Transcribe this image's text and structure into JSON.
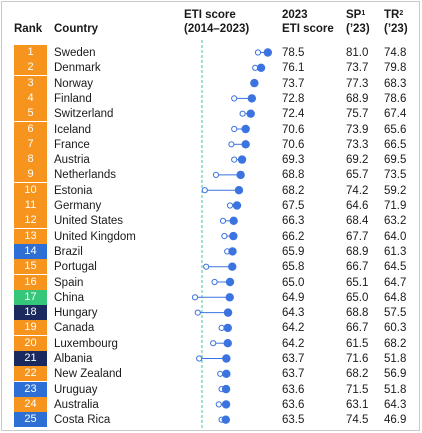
{
  "headers": {
    "rank": "Rank",
    "country": "Country",
    "eti_range_line1": "ETI score",
    "eti_range_line2": "(2014–2023)",
    "eti_2023_line1": "2023",
    "eti_2023_line2": "ETI score",
    "sp_label": "SP",
    "sp_sup": "1",
    "sp_year": "(’23)",
    "tr_label": "TR",
    "tr_sup": "2",
    "tr_year": "(’23)"
  },
  "colors": {
    "orange": "#f7941d",
    "blue": "#2e6fd6",
    "green": "#35c67a",
    "navy": "#1a2a5e",
    "dot": "#3b73e0",
    "reference_line": "#47c29b"
  },
  "chart_data": {
    "type": "table",
    "description_columns": [
      "Rank",
      "Country",
      "ETI score (2014–2023)",
      "2023 ETI score",
      "SP (’23)",
      "TR (’23)"
    ],
    "rows": [
      {
        "rank": "1",
        "country": "Sweden",
        "eti_2014": 75.0,
        "eti_2023": "78.5",
        "sp": "81.0",
        "tr": "74.8",
        "color": "#f7941d"
      },
      {
        "rank": "2",
        "country": "Denmark",
        "eti_2014": 74.0,
        "eti_2023": "76.1",
        "sp": "73.7",
        "tr": "79.8",
        "color": "#f7941d"
      },
      {
        "rank": "3",
        "country": "Norway",
        "eti_2014": 73.5,
        "eti_2023": "73.7",
        "sp": "77.3",
        "tr": "68.3",
        "color": "#f7941d"
      },
      {
        "rank": "4",
        "country": "Finland",
        "eti_2014": 66.5,
        "eti_2023": "72.8",
        "sp": "68.9",
        "tr": "78.6",
        "color": "#f7941d"
      },
      {
        "rank": "5",
        "country": "Switzerland",
        "eti_2014": 69.5,
        "eti_2023": "72.4",
        "sp": "75.7",
        "tr": "67.4",
        "color": "#f7941d"
      },
      {
        "rank": "6",
        "country": "Iceland",
        "eti_2014": 66.5,
        "eti_2023": "70.6",
        "sp": "73.9",
        "tr": "65.6",
        "color": "#f7941d"
      },
      {
        "rank": "7",
        "country": "France",
        "eti_2014": 65.5,
        "eti_2023": "70.6",
        "sp": "73.3",
        "tr": "66.5",
        "color": "#f7941d"
      },
      {
        "rank": "8",
        "country": "Austria",
        "eti_2014": 66.5,
        "eti_2023": "69.3",
        "sp": "69.2",
        "tr": "69.5",
        "color": "#f7941d"
      },
      {
        "rank": "9",
        "country": "Netherlands",
        "eti_2014": 60.0,
        "eti_2023": "68.8",
        "sp": "65.7",
        "tr": "73.5",
        "color": "#f7941d"
      },
      {
        "rank": "10",
        "country": "Estonia",
        "eti_2014": 56.0,
        "eti_2023": "68.2",
        "sp": "74.2",
        "tr": "59.2",
        "color": "#f7941d"
      },
      {
        "rank": "11",
        "country": "Germany",
        "eti_2014": 65.0,
        "eti_2023": "67.5",
        "sp": "64.6",
        "tr": "71.9",
        "color": "#f7941d"
      },
      {
        "rank": "12",
        "country": "United States",
        "eti_2014": 62.5,
        "eti_2023": "66.3",
        "sp": "68.4",
        "tr": "63.2",
        "color": "#f7941d"
      },
      {
        "rank": "13",
        "country": "United Kingdom",
        "eti_2014": 63.0,
        "eti_2023": "66.2",
        "sp": "67.7",
        "tr": "64.0",
        "color": "#f7941d"
      },
      {
        "rank": "14",
        "country": "Brazil",
        "eti_2014": 64.0,
        "eti_2023": "65.9",
        "sp": "68.9",
        "tr": "61.3",
        "color": "#2e6fd6"
      },
      {
        "rank": "15",
        "country": "Portugal",
        "eti_2014": 56.5,
        "eti_2023": "65.8",
        "sp": "66.7",
        "tr": "64.5",
        "color": "#f7941d"
      },
      {
        "rank": "16",
        "country": "Spain",
        "eti_2014": 59.5,
        "eti_2023": "65.0",
        "sp": "65.1",
        "tr": "64.7",
        "color": "#f7941d"
      },
      {
        "rank": "17",
        "country": "China",
        "eti_2014": 52.5,
        "eti_2023": "64.9",
        "sp": "65.0",
        "tr": "64.8",
        "color": "#35c67a"
      },
      {
        "rank": "18",
        "country": "Hungary",
        "eti_2014": 53.5,
        "eti_2023": "64.3",
        "sp": "68.8",
        "tr": "57.5",
        "color": "#1a2a5e"
      },
      {
        "rank": "19",
        "country": "Canada",
        "eti_2014": 62.0,
        "eti_2023": "64.2",
        "sp": "66.7",
        "tr": "60.3",
        "color": "#f7941d"
      },
      {
        "rank": "20",
        "country": "Luxembourg",
        "eti_2014": 59.0,
        "eti_2023": "64.2",
        "sp": "61.5",
        "tr": "68.2",
        "color": "#f7941d"
      },
      {
        "rank": "21",
        "country": "Albania",
        "eti_2014": 54.0,
        "eti_2023": "63.7",
        "sp": "71.6",
        "tr": "51.8",
        "color": "#1a2a5e"
      },
      {
        "rank": "22",
        "country": "New Zealand",
        "eti_2014": 61.5,
        "eti_2023": "63.7",
        "sp": "68.2",
        "tr": "56.9",
        "color": "#f7941d"
      },
      {
        "rank": "23",
        "country": "Uruguay",
        "eti_2014": 62.0,
        "eti_2023": "63.6",
        "sp": "71.5",
        "tr": "51.8",
        "color": "#2e6fd6"
      },
      {
        "rank": "24",
        "country": "Australia",
        "eti_2014": 61.0,
        "eti_2023": "63.6",
        "sp": "63.1",
        "tr": "64.3",
        "color": "#f7941d"
      },
      {
        "rank": "25",
        "country": "Costa Rica",
        "eti_2014": 62.0,
        "eti_2023": "63.5",
        "sp": "74.5",
        "tr": "46.9",
        "color": "#2e6fd6"
      }
    ],
    "x_domain": [
      50,
      80
    ],
    "reference_value": 55,
    "grid": false
  }
}
